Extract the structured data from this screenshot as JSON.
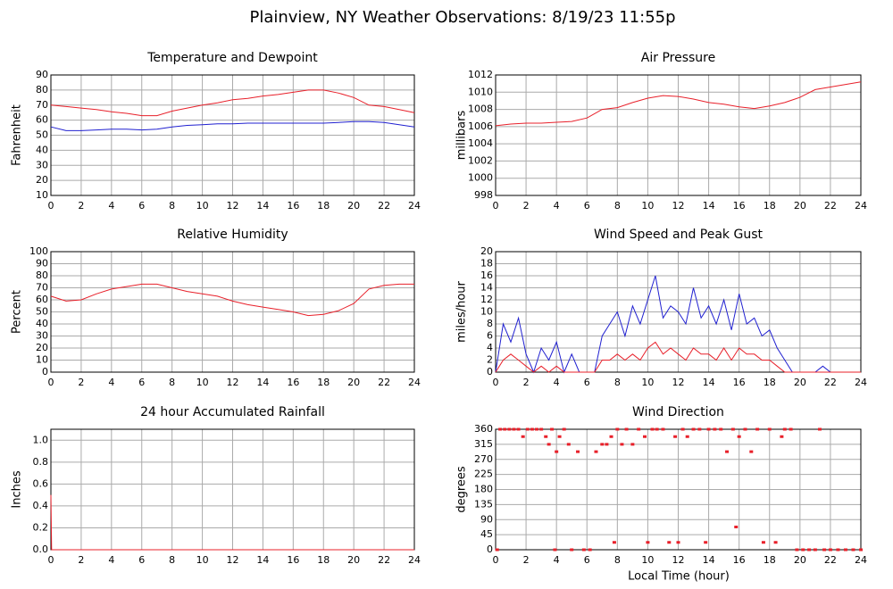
{
  "title": "Plainview, NY Weather Observations: 8/19/23 11:55p",
  "x_label": "Local Time (hour)",
  "chart_data": [
    {
      "type": "line",
      "title": "Temperature and Dewpoint",
      "y_label": "Fahrenheit",
      "x": [
        0,
        1,
        2,
        3,
        4,
        5,
        6,
        7,
        8,
        9,
        10,
        11,
        12,
        13,
        14,
        15,
        16,
        17,
        18,
        19,
        20,
        21,
        22,
        23,
        24
      ],
      "series": [
        {
          "color": "#e8202a",
          "values": [
            70,
            69,
            68,
            67,
            65.5,
            64.5,
            63,
            63,
            66,
            68,
            70,
            71.5,
            73.5,
            74.5,
            76,
            77,
            78.5,
            80,
            80,
            78,
            75,
            70,
            69,
            67,
            65
          ]
        },
        {
          "color": "#2020d0",
          "values": [
            55.5,
            53,
            53,
            53.5,
            54,
            54,
            53.5,
            54,
            55.5,
            56.5,
            57,
            57.5,
            57.5,
            58,
            58,
            58,
            58,
            58,
            58,
            58.5,
            59,
            59,
            58.5,
            57,
            55.5
          ]
        }
      ],
      "xlim": [
        0,
        24
      ],
      "xticks": [
        0,
        2,
        4,
        6,
        8,
        10,
        12,
        14,
        16,
        18,
        20,
        22,
        24
      ],
      "ylim": [
        10,
        90
      ],
      "yticks": [
        10,
        20,
        30,
        40,
        50,
        60,
        70,
        80,
        90
      ],
      "grid": true
    },
    {
      "type": "line",
      "title": "Air Pressure",
      "y_label": "millibars",
      "x": [
        0,
        1,
        2,
        3,
        4,
        5,
        6,
        7,
        8,
        9,
        10,
        11,
        12,
        13,
        14,
        15,
        16,
        17,
        18,
        19,
        20,
        21,
        22,
        23,
        24
      ],
      "series": [
        {
          "color": "#e8202a",
          "values": [
            1006.1,
            1006.3,
            1006.4,
            1006.4,
            1006.5,
            1006.6,
            1007,
            1008,
            1008.2,
            1008.8,
            1009.3,
            1009.6,
            1009.5,
            1009.2,
            1008.8,
            1008.6,
            1008.3,
            1008.1,
            1008.4,
            1008.8,
            1009.4,
            1010.3,
            1010.6,
            1010.9,
            1011.2
          ]
        }
      ],
      "xlim": [
        0,
        24
      ],
      "xticks": [
        0,
        2,
        4,
        6,
        8,
        10,
        12,
        14,
        16,
        18,
        20,
        22,
        24
      ],
      "ylim": [
        998,
        1012
      ],
      "yticks": [
        998,
        1000,
        1002,
        1004,
        1006,
        1008,
        1010,
        1012
      ],
      "grid": true
    },
    {
      "type": "line",
      "title": "Relative Humidity",
      "y_label": "Percent",
      "x": [
        0,
        1,
        2,
        3,
        4,
        5,
        6,
        7,
        8,
        9,
        10,
        11,
        12,
        13,
        14,
        15,
        16,
        17,
        18,
        19,
        20,
        21,
        22,
        23,
        24
      ],
      "series": [
        {
          "color": "#e8202a",
          "values": [
            63,
            59,
            60,
            65,
            69,
            71,
            73,
            73,
            70,
            67,
            65,
            63,
            59,
            56,
            54,
            52,
            50,
            47,
            48,
            51,
            57,
            69,
            72,
            73,
            73
          ]
        }
      ],
      "xlim": [
        0,
        24
      ],
      "xticks": [
        0,
        2,
        4,
        6,
        8,
        10,
        12,
        14,
        16,
        18,
        20,
        22,
        24
      ],
      "ylim": [
        0,
        100
      ],
      "yticks": [
        0,
        10,
        20,
        30,
        40,
        50,
        60,
        70,
        80,
        90,
        100
      ],
      "grid": true
    },
    {
      "type": "line",
      "title": "Wind Speed and Peak Gust",
      "y_label": "miles/hour",
      "x": [
        0,
        0.5,
        1,
        1.5,
        2,
        2.5,
        3,
        3.5,
        4,
        4.5,
        5,
        5.5,
        6,
        6.5,
        7,
        7.5,
        8,
        8.5,
        9,
        9.5,
        10,
        10.5,
        11,
        11.5,
        12,
        12.5,
        13,
        13.5,
        14,
        14.5,
        15,
        15.5,
        16,
        16.5,
        17,
        17.5,
        18,
        18.5,
        19,
        19.5,
        20,
        20.5,
        21,
        21.5,
        22,
        22.5,
        23,
        23.5,
        24
      ],
      "series": [
        {
          "color": "#2020d0",
          "values": [
            0,
            8,
            5,
            9,
            3,
            0,
            4,
            2,
            5,
            0,
            3,
            0,
            0,
            0,
            6,
            8,
            10,
            6,
            11,
            8,
            12,
            16,
            9,
            11,
            10,
            8,
            14,
            9,
            11,
            8,
            12,
            7,
            13,
            8,
            9,
            6,
            7,
            4,
            2,
            0,
            0,
            0,
            0,
            1,
            0,
            0,
            0,
            0,
            0
          ]
        },
        {
          "color": "#e8202a",
          "values": [
            0,
            2,
            3,
            2,
            1,
            0,
            1,
            0,
            1,
            0,
            0,
            0,
            0,
            0,
            2,
            2,
            3,
            2,
            3,
            2,
            4,
            5,
            3,
            4,
            3,
            2,
            4,
            3,
            3,
            2,
            4,
            2,
            4,
            3,
            3,
            2,
            2,
            1,
            0,
            0,
            0,
            0,
            0,
            0,
            0,
            0,
            0,
            0,
            0
          ]
        }
      ],
      "xlim": [
        0,
        24
      ],
      "xticks": [
        0,
        2,
        4,
        6,
        8,
        10,
        12,
        14,
        16,
        18,
        20,
        22,
        24
      ],
      "ylim": [
        0,
        20
      ],
      "yticks": [
        0,
        2,
        4,
        6,
        8,
        10,
        12,
        14,
        16,
        18,
        20
      ],
      "grid": true
    },
    {
      "type": "line",
      "title": "24 hour Accumulated Rainfall",
      "y_label": "Inches",
      "x": [
        0,
        0.05,
        24
      ],
      "series": [
        {
          "color": "#e8202a",
          "values": [
            0.5,
            0,
            0
          ]
        }
      ],
      "xlim": [
        0,
        24
      ],
      "xticks": [
        0,
        2,
        4,
        6,
        8,
        10,
        12,
        14,
        16,
        18,
        20,
        22,
        24
      ],
      "ylim": [
        0,
        1.1
      ],
      "yticks": [
        {
          "value": 0,
          "label": "0.0"
        },
        0.2,
        0.4,
        0.6,
        0.8,
        {
          "value": 1,
          "label": "1.0"
        }
      ],
      "grid": true
    },
    {
      "type": "scatter",
      "title": "Wind Direction",
      "y_label": "degrees",
      "x": [
        0.1,
        0.3,
        0.6,
        0.9,
        1.2,
        1.5,
        1.8,
        2.1,
        2.4,
        2.7,
        3.0,
        3.3,
        3.5,
        3.7,
        3.9,
        4.0,
        4.2,
        4.5,
        4.8,
        5.0,
        5.4,
        5.8,
        6.2,
        6.6,
        7.0,
        7.3,
        7.6,
        7.8,
        8.0,
        8.3,
        8.6,
        9.0,
        9.4,
        9.8,
        10.0,
        10.3,
        10.6,
        11.0,
        11.4,
        11.8,
        12.0,
        12.3,
        12.6,
        13.0,
        13.4,
        13.8,
        14.0,
        14.4,
        14.8,
        15.2,
        15.6,
        15.8,
        16.0,
        16.4,
        16.8,
        17.2,
        17.6,
        18.0,
        18.4,
        18.8,
        19.0,
        19.4,
        19.8,
        20.2,
        20.6,
        21.0,
        21.3,
        21.6,
        22.0,
        22.5,
        23.0,
        23.5,
        24.0
      ],
      "series": [
        {
          "color": "#e8202a",
          "values": [
            0,
            360,
            360,
            360,
            360,
            360,
            338,
            360,
            360,
            360,
            360,
            338,
            315,
            360,
            0,
            293,
            338,
            360,
            315,
            0,
            293,
            0,
            0,
            293,
            315,
            315,
            338,
            22,
            360,
            315,
            360,
            315,
            360,
            338,
            22,
            360,
            360,
            360,
            22,
            338,
            22,
            360,
            338,
            360,
            360,
            22,
            360,
            360,
            360,
            293,
            360,
            68,
            338,
            360,
            293,
            360,
            22,
            360,
            22,
            338,
            360,
            360,
            0,
            0,
            0,
            0,
            360,
            0,
            0,
            0,
            0,
            0,
            0
          ]
        }
      ],
      "xlim": [
        0,
        24
      ],
      "xticks": [
        0,
        2,
        4,
        6,
        8,
        10,
        12,
        14,
        16,
        18,
        20,
        22,
        24
      ],
      "ylim": [
        0,
        360
      ],
      "yticks": [
        0,
        45,
        90,
        135,
        180,
        225,
        270,
        315,
        360
      ],
      "grid": true
    }
  ]
}
